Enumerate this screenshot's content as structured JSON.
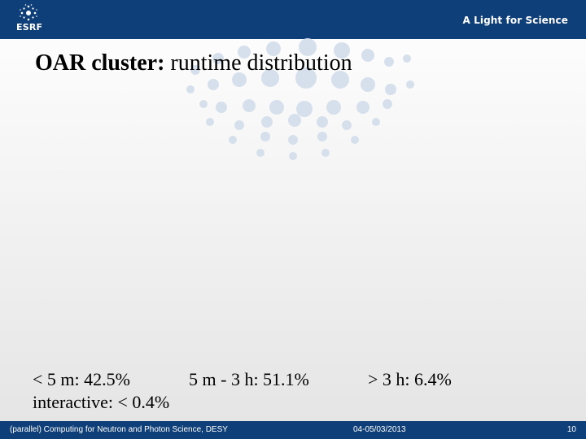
{
  "header": {
    "logo_text": "ESRF",
    "tagline": "A Light for Science"
  },
  "slide": {
    "title_bold": "OAR cluster:",
    "title_rest": " runtime distribution",
    "stats": [
      "< 5 m: 42.5%",
      "5 m - 3 h: 51.1%",
      "> 3 h: 6.4%",
      "interactive: < 0.4%"
    ]
  },
  "footer": {
    "left": "(parallel) Computing for Neutron and Photon Science, DESY",
    "date": "04-05/03/2013",
    "page": "10"
  },
  "colors": {
    "brand_blue": "#0f3f78",
    "dot_blue": "#d6e0ec"
  }
}
